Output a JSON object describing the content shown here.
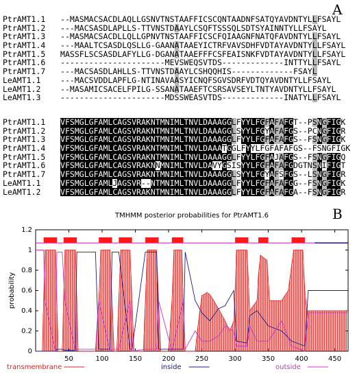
{
  "panels": {
    "a": "A",
    "b": "B"
  },
  "alignment_block1": [
    {
      "name": "PtrAMT1.1",
      "seq": "--MASMACSACDLAQLLGSNVTNSTAAFFICSCQNTAADNFSATQYAVDNTYLLFSAYL"
    },
    {
      "name": "PtrAMT1.2",
      "seq": "---MACSASDLAPLLS-TTVNSTDAAYLCSQFTSSSQLSDTSYAINNTYLLFSAYL"
    },
    {
      "name": "PtrAMT1.3",
      "seq": "--MASMACSACDLLQLLGPNVTNSTAAFFICSCFQIAAGNFNATQFAVDNTYLLFSAYL"
    },
    {
      "name": "PtrAMT1.4",
      "seq": "---MAALTCSASDLQSLLG-GAANATAAEYICTRFVAVSDHFVDTAYAVDNTYLLFSAYL"
    },
    {
      "name": "PtrAMT1.5",
      "seq": "MASSFLSCSASDLAFYLLG-DGANATAAEFFFCSFEAISNKFVDTAYAVDNTYLLFSAYL"
    },
    {
      "name": "PtrAMT1.6",
      "seq": "----------------------MEVSWEQSVTDS-------------INTTYLLFSAYL"
    },
    {
      "name": "PtrAMT1.7",
      "seq": "---MACSASDLAHLLS-TTVNSTDAAYLCSHQQHIS-------------FSAYL"
    },
    {
      "name": "LeAMT1.1",
      "seq": "---MACSVDDLAPFLG-NTINAVAASYICNQFSGVSDRFVDTQYAVDNTYLLFSAYL"
    },
    {
      "name": "LeAMT1.2",
      "seq": "--MASAMICSACELFPILG-SSANATAAEFTCSRSAVSEYLTNTYAVDNTYLLFSAYL"
    },
    {
      "name": "LeAMT1.3",
      "seq": "----------------------MDSSWEASVTDS-------------INATYLLFSAYL"
    }
  ],
  "alignment_block2": [
    {
      "name": "PtrAMT1.1",
      "seq": "VFSMGLGFAMLCAGSVRAKNTMNIMLTNVLDAAAGGLFYYLFGFAFAFGT--PSNGFIGK"
    },
    {
      "name": "PtrAMT1.2",
      "seq": "VFSMGLGFAMLCAGSVRAKNTMNIMLTNVLDAAAGGLSYYLFGYAFAFGS--PCNGFIGR"
    },
    {
      "name": "PtrAMT1.3",
      "seq": "VFSMGLGFAMLCAGSVRAKNTMNIMLTNVLDAAAGGLFYYLFGFAFAFGS--FSNGFIGK"
    },
    {
      "name": "PtrAMT1.4",
      "seq": "VFSMGLGFAMLCAGSVRAKNTMNIMLTNVLDAAATGGLFYYLFGFAFAFGS--FSNGFIGK"
    },
    {
      "name": "PtrAMT1.5",
      "seq": "VFSMGLGFAMLCAGSVRAKNTMNIMLTNVLDAAAGGLFYYLFGFAJAFGS--FSNGFIGQ"
    },
    {
      "name": "PtrAMT1.6",
      "seq": "VFSMGLGFAMLCAGSVRAKNNMNIMLTNVLDAVYGSISYYLFGFAFAFGDGTNSNIFIGT"
    },
    {
      "name": "PtrAMT1.7",
      "seq": "VFSMGLGFAMLCAGSVRAKNTMNIMLTNVLDAAAGGLSYYLFGYAFSFGS--LSNGFIGR"
    },
    {
      "name": "LeAMT1.1",
      "seq": "VFSMGLGFAMLJAGSVR--NTMNIMLTNVLDAAAGGLFYYLFGFAFAFGG--FSNGFIGK"
    },
    {
      "name": "LeAMT1.2",
      "seq": "VFSMGLGFAMLCAGSVRAKNTMNIMLTNVLDAAAGGLFYYLFGFAFAFGA--FSNGFIGR"
    }
  ],
  "chart_data": {
    "type": "line",
    "title": "TMHMM posterior probabilities for PtrAMT1.6",
    "ylabel": "probability",
    "xlabel": "",
    "xlim": [
      0,
      470
    ],
    "ylim": [
      0,
      1.2
    ],
    "xticks": [
      50,
      100,
      150,
      200,
      250,
      300,
      350,
      400,
      450
    ],
    "yticks": [
      0,
      0.2,
      0.4,
      0.6,
      0.8,
      1,
      1.2
    ],
    "legend": [
      "transmembrane",
      "inside",
      "outside"
    ],
    "colors": {
      "transmembrane": "#e0201c",
      "inside": "#1a1a8c",
      "outside": "#cc33cc",
      "tmbox": "#ff1a1a"
    },
    "tm_bars": [
      {
        "start": 12,
        "end": 32
      },
      {
        "start": 42,
        "end": 62
      },
      {
        "start": 95,
        "end": 115
      },
      {
        "start": 125,
        "end": 145
      },
      {
        "start": 165,
        "end": 185
      },
      {
        "start": 205,
        "end": 222
      },
      {
        "start": 300,
        "end": 320
      },
      {
        "start": 335,
        "end": 350
      },
      {
        "start": 385,
        "end": 405
      }
    ],
    "series": [
      {
        "name": "transmembrane",
        "x": [
          0,
          10,
          12,
          14,
          30,
          32,
          34,
          40,
          42,
          44,
          60,
          62,
          64,
          90,
          95,
          98,
          112,
          115,
          118,
          122,
          125,
          128,
          142,
          145,
          148,
          162,
          165,
          168,
          182,
          185,
          188,
          200,
          205,
          208,
          220,
          222,
          225,
          240,
          245,
          250,
          258,
          262,
          268,
          275,
          285,
          292,
          298,
          300,
          302,
          318,
          320,
          322,
          333,
          335,
          338,
          348,
          350,
          352,
          370,
          380,
          385,
          388,
          402,
          405,
          408,
          470
        ],
        "y": [
          0,
          0,
          0.5,
          1,
          1,
          0.5,
          0,
          0,
          0.5,
          1,
          1,
          0.5,
          0,
          0,
          0.5,
          1,
          1,
          0.5,
          0,
          0,
          0.5,
          1,
          1,
          0.5,
          0,
          0,
          0.5,
          1,
          1,
          0.5,
          0,
          0,
          0.5,
          1,
          1,
          0.5,
          0,
          0,
          0.3,
          0.55,
          0.58,
          0.56,
          0.5,
          0.42,
          0.3,
          0.2,
          0.3,
          0.6,
          1,
          1,
          0.7,
          0.4,
          0.5,
          0.75,
          0.95,
          0.9,
          0.7,
          0.5,
          0.5,
          0.6,
          0.85,
          1,
          1,
          0.6,
          0.4,
          0.4
        ]
      },
      {
        "name": "inside",
        "x": [
          0,
          12,
          14,
          30,
          32,
          40,
          44,
          60,
          62,
          90,
          95,
          112,
          115,
          125,
          142,
          145,
          165,
          182,
          185,
          205,
          222,
          225,
          240,
          250,
          262,
          275,
          285,
          298,
          302,
          318,
          322,
          333,
          350,
          370,
          385,
          405,
          410,
          470
        ],
        "y": [
          0,
          0,
          0,
          0,
          0.02,
          0.02,
          0.01,
          0.01,
          0.98,
          0.98,
          0.02,
          0.02,
          0.98,
          0.98,
          0.02,
          0.02,
          0.98,
          0.98,
          0.02,
          0.02,
          0.02,
          0.98,
          0.5,
          0.38,
          0.3,
          0.42,
          0.45,
          0.6,
          0.1,
          0.08,
          0.35,
          0.4,
          0.25,
          0.2,
          0.1,
          0.05,
          0.6,
          0.6
        ]
      },
      {
        "name": "outside",
        "x": [
          0,
          12,
          14,
          30,
          32,
          40,
          44,
          60,
          62,
          90,
          95,
          112,
          115,
          125,
          142,
          145,
          165,
          182,
          185,
          205,
          222,
          225,
          240,
          250,
          262,
          275,
          285,
          298,
          302,
          318,
          322,
          333,
          350,
          370,
          385,
          405,
          410,
          470
        ],
        "y": [
          1,
          1,
          0.5,
          0,
          0.98,
          0.98,
          0.5,
          0,
          0.02,
          0.02,
          0.5,
          0,
          0.02,
          0.02,
          0.5,
          0,
          0.02,
          0.02,
          0.5,
          0,
          0.5,
          0.02,
          0.2,
          0.1,
          0.1,
          0.15,
          0.25,
          0.2,
          0.05,
          0.05,
          0.25,
          0.1,
          0.1,
          0.3,
          0.05,
          0,
          0.38,
          0.38
        ]
      }
    ]
  }
}
